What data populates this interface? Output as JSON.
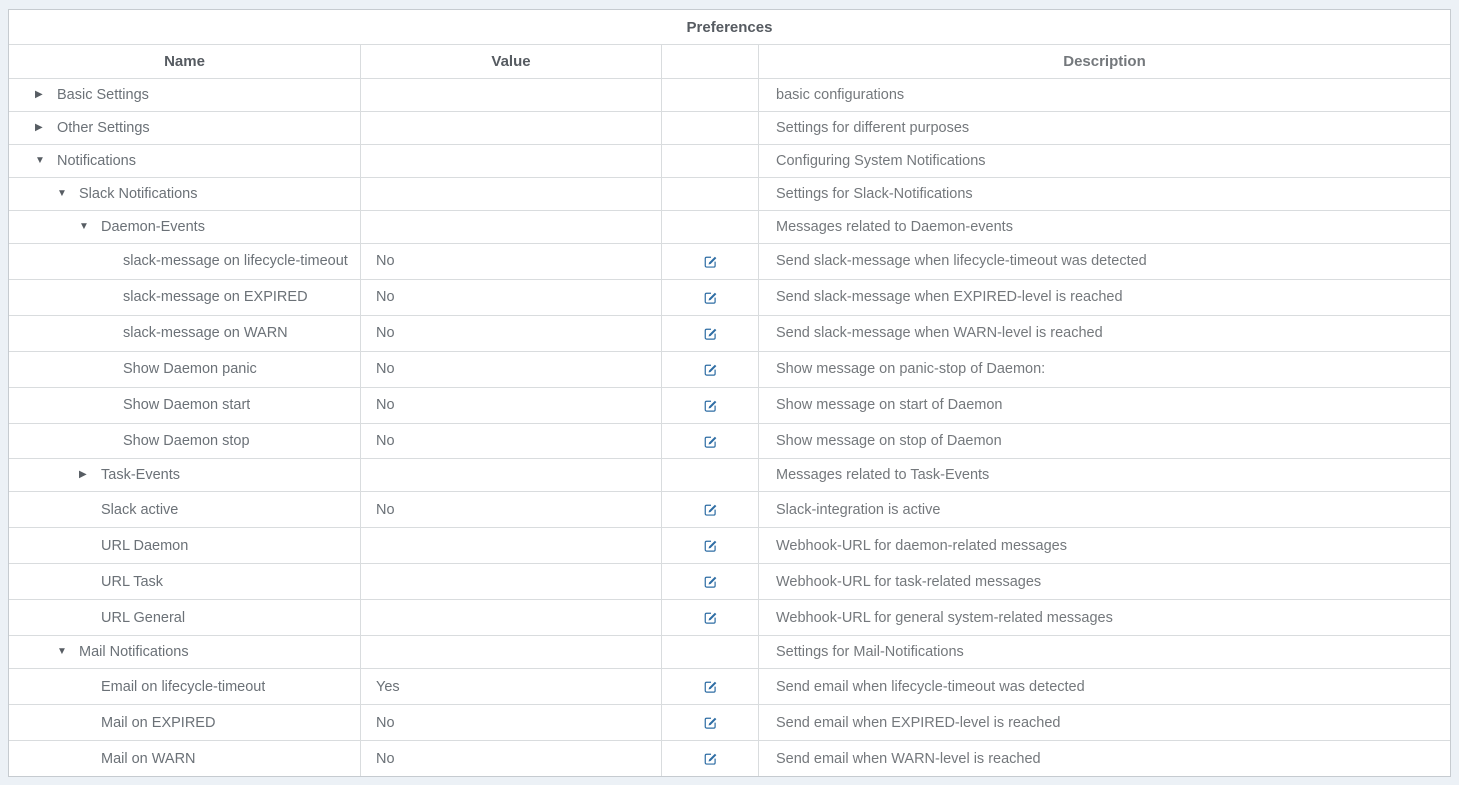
{
  "page": {
    "background": "#ecf1f6"
  },
  "table": {
    "title": "Preferences",
    "columns": {
      "name": "Name",
      "value": "Value",
      "edit": "",
      "description": "Description"
    },
    "accent_color": "#2e6da4",
    "toggle_icons": {
      "expanded": "▼",
      "collapsed": "▶"
    },
    "rows": [
      {
        "name": "Basic Settings",
        "depth": 0,
        "state": "collapsed",
        "value": "",
        "editable": false,
        "description": "basic configurations"
      },
      {
        "name": "Other Settings",
        "depth": 0,
        "state": "collapsed",
        "value": "",
        "editable": false,
        "description": "Settings for different purposes"
      },
      {
        "name": "Notifications",
        "depth": 0,
        "state": "expanded",
        "value": "",
        "editable": false,
        "description": "Configuring System Notifications"
      },
      {
        "name": "Slack Notifications",
        "depth": 1,
        "state": "expanded",
        "value": "",
        "editable": false,
        "description": "Settings for Slack-Notifications"
      },
      {
        "name": "Daemon-Events",
        "depth": 2,
        "state": "expanded",
        "value": "",
        "editable": false,
        "description": "Messages related to Daemon-events"
      },
      {
        "name": "slack-message on lifecycle-timeout",
        "depth": 3,
        "state": "leaf",
        "value": "No",
        "editable": true,
        "description": "Send slack-message when lifecycle-timeout was detected"
      },
      {
        "name": "slack-message on EXPIRED",
        "depth": 3,
        "state": "leaf",
        "value": "No",
        "editable": true,
        "description": "Send slack-message when EXPIRED-level is reached"
      },
      {
        "name": "slack-message on WARN",
        "depth": 3,
        "state": "leaf",
        "value": "No",
        "editable": true,
        "description": "Send slack-message when WARN-level is reached"
      },
      {
        "name": "Show Daemon panic",
        "depth": 3,
        "state": "leaf",
        "value": "No",
        "editable": true,
        "description": "Show message on panic-stop of Daemon:"
      },
      {
        "name": "Show Daemon start",
        "depth": 3,
        "state": "leaf",
        "value": "No",
        "editable": true,
        "description": "Show message on start of Daemon"
      },
      {
        "name": "Show Daemon stop",
        "depth": 3,
        "state": "leaf",
        "value": "No",
        "editable": true,
        "description": "Show message on stop of Daemon"
      },
      {
        "name": "Task-Events",
        "depth": 2,
        "state": "collapsed",
        "value": "",
        "editable": false,
        "description": "Messages related to Task-Events"
      },
      {
        "name": "Slack active",
        "depth": 2,
        "state": "leaf",
        "value": "No",
        "editable": true,
        "description": "Slack-integration is active"
      },
      {
        "name": "URL Daemon",
        "depth": 2,
        "state": "leaf",
        "value": "",
        "editable": true,
        "description": "Webhook-URL for daemon-related messages"
      },
      {
        "name": "URL Task",
        "depth": 2,
        "state": "leaf",
        "value": "",
        "editable": true,
        "description": "Webhook-URL for task-related messages"
      },
      {
        "name": "URL General",
        "depth": 2,
        "state": "leaf",
        "value": "",
        "editable": true,
        "description": "Webhook-URL for general system-related messages"
      },
      {
        "name": "Mail Notifications",
        "depth": 1,
        "state": "expanded",
        "value": "",
        "editable": false,
        "description": "Settings for Mail-Notifications"
      },
      {
        "name": "Email on lifecycle-timeout",
        "depth": 2,
        "state": "leaf",
        "value": "Yes",
        "editable": true,
        "description": "Send email when lifecycle-timeout was detected"
      },
      {
        "name": "Mail on EXPIRED",
        "depth": 2,
        "state": "leaf",
        "value": "No",
        "editable": true,
        "description": "Send email when EXPIRED-level is reached"
      },
      {
        "name": "Mail on WARN",
        "depth": 2,
        "state": "leaf",
        "value": "No",
        "editable": true,
        "description": "Send email when WARN-level is reached"
      }
    ]
  }
}
